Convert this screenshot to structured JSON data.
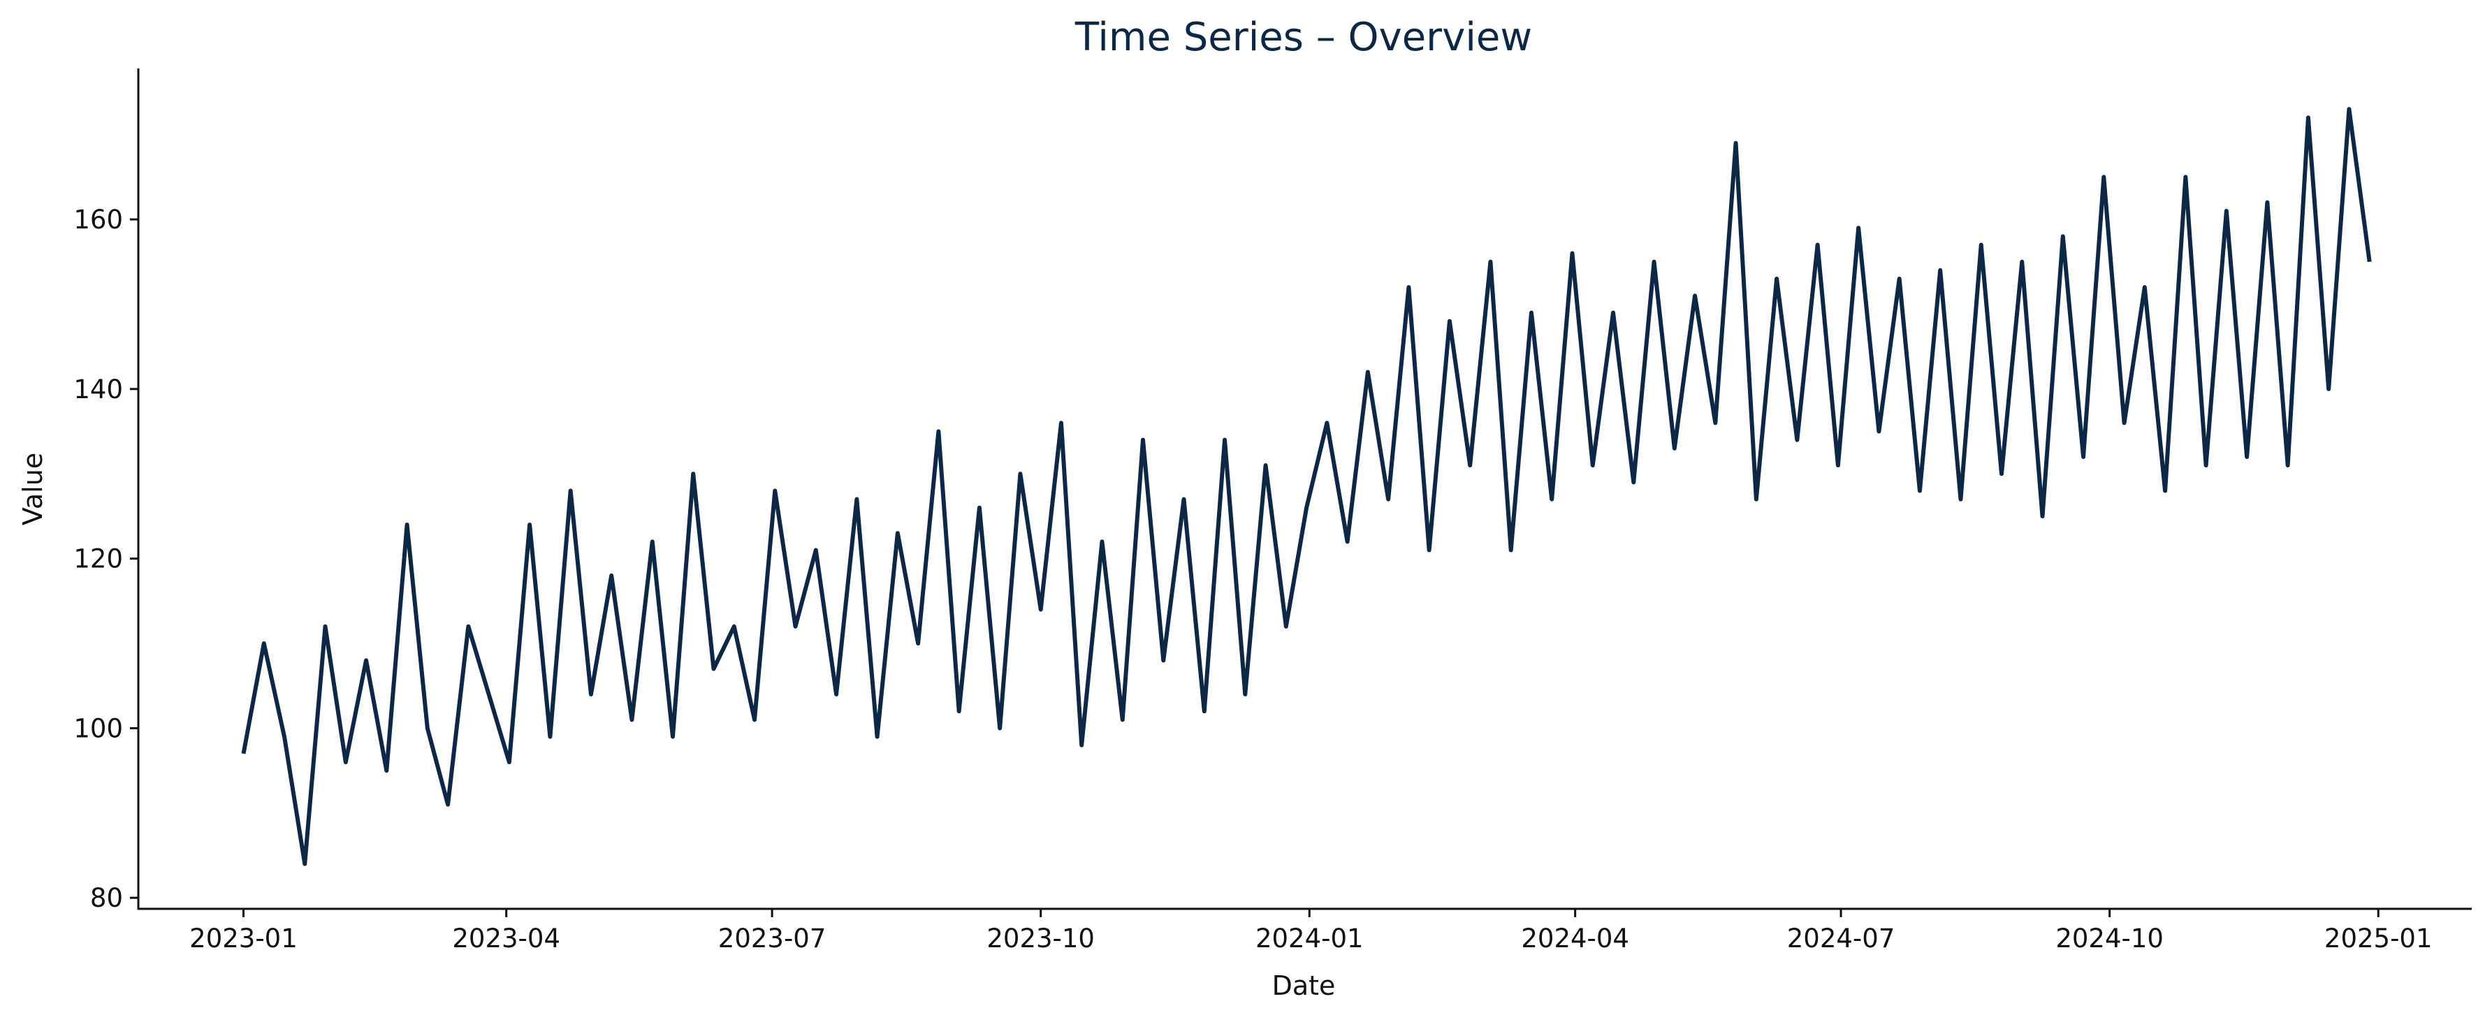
{
  "chart_data": {
    "type": "line",
    "title": "Time Series – Overview",
    "x_label": "Date",
    "y_label": "Value",
    "x": [
      "2023-01-01",
      "2023-01-08",
      "2023-01-15",
      "2023-01-22",
      "2023-01-29",
      "2023-02-05",
      "2023-02-12",
      "2023-02-19",
      "2023-02-26",
      "2023-03-05",
      "2023-03-12",
      "2023-03-19",
      "2023-03-26",
      "2023-04-02",
      "2023-04-09",
      "2023-04-16",
      "2023-04-23",
      "2023-04-30",
      "2023-05-07",
      "2023-05-14",
      "2023-05-21",
      "2023-05-28",
      "2023-06-04",
      "2023-06-11",
      "2023-06-18",
      "2023-06-25",
      "2023-07-02",
      "2023-07-09",
      "2023-07-16",
      "2023-07-23",
      "2023-07-30",
      "2023-08-06",
      "2023-08-13",
      "2023-08-20",
      "2023-08-27",
      "2023-09-03",
      "2023-09-10",
      "2023-09-17",
      "2023-09-24",
      "2023-10-01",
      "2023-10-08",
      "2023-10-15",
      "2023-10-22",
      "2023-10-29",
      "2023-11-05",
      "2023-11-12",
      "2023-11-19",
      "2023-11-26",
      "2023-12-03",
      "2023-12-10",
      "2023-12-17",
      "2023-12-24",
      "2023-12-31",
      "2024-01-07",
      "2024-01-14",
      "2024-01-21",
      "2024-01-28",
      "2024-02-04",
      "2024-02-11",
      "2024-02-18",
      "2024-02-25",
      "2024-03-03",
      "2024-03-10",
      "2024-03-17",
      "2024-03-24",
      "2024-03-31",
      "2024-04-07",
      "2024-04-14",
      "2024-04-21",
      "2024-04-28",
      "2024-05-05",
      "2024-05-12",
      "2024-05-19",
      "2024-05-26",
      "2024-06-02",
      "2024-06-09",
      "2024-06-16",
      "2024-06-23",
      "2024-06-30",
      "2024-07-07",
      "2024-07-14",
      "2024-07-21",
      "2024-07-28",
      "2024-08-04",
      "2024-08-11",
      "2024-08-18",
      "2024-08-25",
      "2024-09-01",
      "2024-09-08",
      "2024-09-15",
      "2024-09-22",
      "2024-09-29",
      "2024-10-06",
      "2024-10-13",
      "2024-10-20",
      "2024-10-27",
      "2024-11-03",
      "2024-11-10",
      "2024-11-17",
      "2024-11-24",
      "2024-12-01",
      "2024-12-08",
      "2024-12-15",
      "2024-12-22",
      "2024-12-29"
    ],
    "series": [
      {
        "name": "Value",
        "color": "#0d2847",
        "values": [
          97,
          110,
          99,
          84,
          112,
          96,
          108,
          95,
          124,
          100,
          91,
          112,
          104,
          96,
          124,
          99,
          128,
          104,
          118,
          101,
          122,
          99,
          130,
          107,
          112,
          101,
          128,
          112,
          121,
          104,
          127,
          99,
          123,
          110,
          135,
          102,
          126,
          100,
          130,
          114,
          136,
          98,
          122,
          101,
          134,
          108,
          127,
          102,
          134,
          104,
          131,
          112,
          126,
          136,
          122,
          142,
          127,
          152,
          121,
          148,
          131,
          155,
          121,
          149,
          127,
          156,
          131,
          149,
          129,
          155,
          133,
          151,
          136,
          169,
          127,
          153,
          134,
          157,
          131,
          159,
          135,
          153,
          128,
          154,
          127,
          157,
          130,
          155,
          125,
          158,
          132,
          165,
          136,
          152,
          128,
          165,
          131,
          161,
          132,
          162,
          131,
          172,
          140,
          173,
          155
        ]
      }
    ],
    "xlim": [
      "2022-11-26",
      "2025-02-02"
    ],
    "xticks": [
      "2023-01",
      "2023-04",
      "2023-07",
      "2023-10",
      "2024-01",
      "2024-04",
      "2024-07",
      "2024-10",
      "2025-01"
    ],
    "ylim": [
      78.7,
      177.8
    ],
    "yticks": [
      80,
      100,
      120,
      140,
      160
    ],
    "grid": false
  }
}
